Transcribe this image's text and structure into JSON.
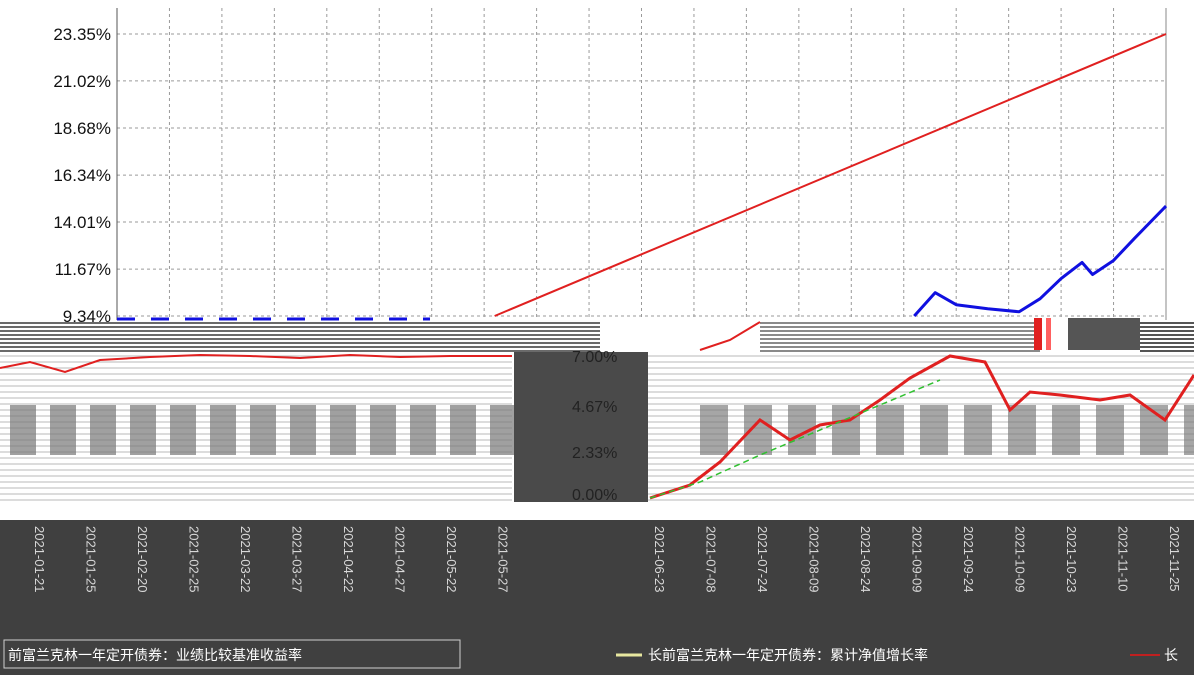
{
  "chart_data": {
    "type": "line",
    "title": "",
    "xlabel": "",
    "ylabel": "",
    "y_tick_labels": [
      "23.35%",
      "21.02%",
      "18.68%",
      "16.34%",
      "14.01%",
      "11.67%",
      "9.34%"
    ],
    "y_ticks": [
      23.35,
      21.02,
      18.68,
      16.34,
      14.01,
      11.67,
      9.34
    ],
    "ylim": [
      9.34,
      23.35
    ],
    "grid": true,
    "legend_position": "bottom",
    "series": [
      {
        "name": "",
        "color": "#e02020",
        "x": [
          0.36,
          1.0
        ],
        "values": [
          9.34,
          23.35
        ]
      },
      {
        "name": "",
        "color": "#1010e0",
        "x": [
          0.76,
          0.78,
          0.8,
          0.83,
          0.86,
          0.88,
          0.9,
          0.92,
          0.93,
          0.95,
          0.97,
          1.0
        ],
        "values": [
          9.34,
          10.5,
          9.9,
          9.7,
          9.55,
          10.2,
          11.2,
          12.0,
          11.4,
          12.1,
          13.2,
          14.8
        ]
      }
    ],
    "secondary_panel": {
      "y_tick_labels": [
        "7.00%",
        "4.67%",
        "2.33%",
        "0.00%"
      ],
      "date_labels_left": [
        "2021-01-21",
        "2021-01-25",
        "2021-02-20",
        "2021-02-25",
        "2021-03-22",
        "2021-03-27",
        "2021-04-22",
        "2021-04-27",
        "2021-05-22",
        "2021-05-27"
      ],
      "date_labels_right": [
        "2021-06-23",
        "2021-07-08",
        "2021-07-24",
        "2021-08-09",
        "2021-08-24",
        "2021-09-09",
        "2021-09-24",
        "2021-10-09",
        "2021-10-23",
        "2021-11-10",
        "2021-11-25"
      ]
    },
    "legend": {
      "left_text": "前富兰克林一年定开债券：业绩比较基准收益率",
      "right_text": "长前富兰克林一年定开债券：累计净值增长率",
      "right_tail": "长"
    }
  }
}
